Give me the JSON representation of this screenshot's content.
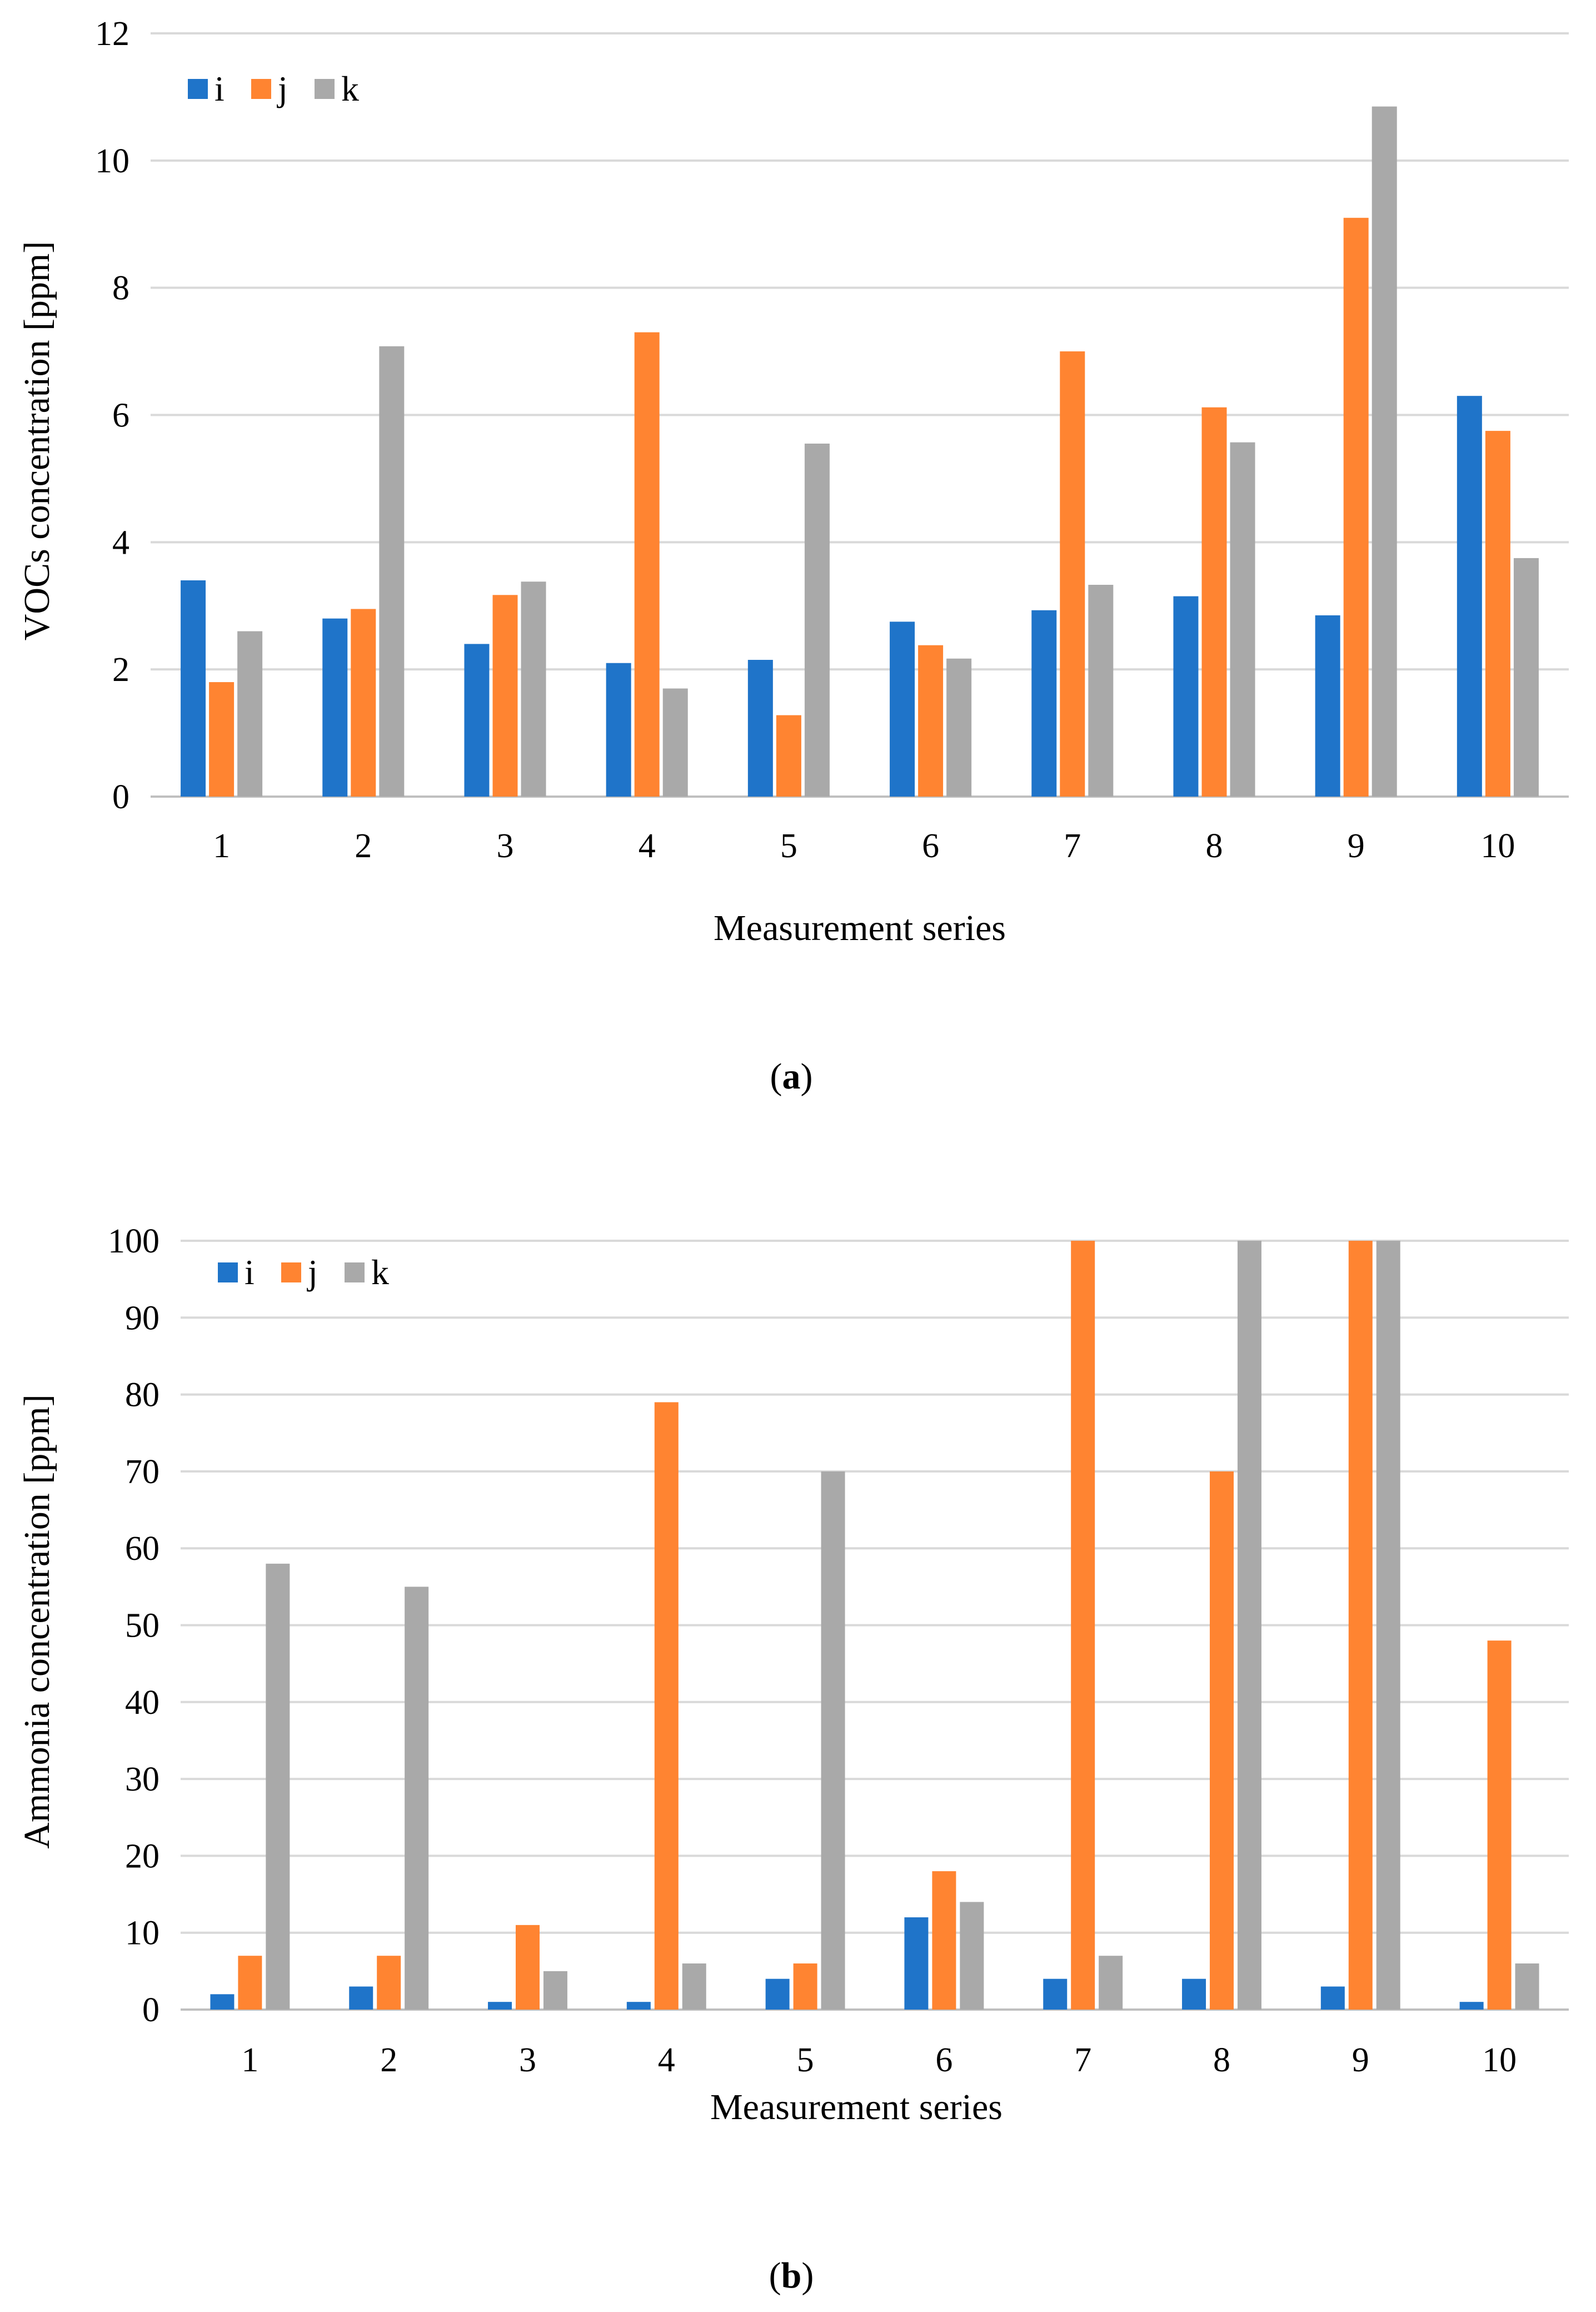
{
  "chart_data": [
    {
      "type": "bar",
      "title": "",
      "panel_label": "a",
      "xlabel": "Measurement series",
      "ylabel": "VOCs concentration [ppm]",
      "ylim": [
        0,
        12
      ],
      "yticks": [
        0,
        2,
        4,
        6,
        8,
        10,
        12
      ],
      "grid": true,
      "legend_position": "top-left",
      "categories": [
        "1",
        "2",
        "3",
        "4",
        "5",
        "6",
        "7",
        "8",
        "9",
        "10"
      ],
      "series": [
        {
          "name": "i",
          "color": "#1F74C9",
          "values": [
            3.4,
            2.8,
            2.4,
            2.1,
            2.15,
            2.75,
            2.93,
            3.15,
            2.85,
            6.3
          ]
        },
        {
          "name": "j",
          "color": "#FF8431",
          "values": [
            1.8,
            2.95,
            3.17,
            7.3,
            1.28,
            2.38,
            7.0,
            6.12,
            9.1,
            5.75
          ]
        },
        {
          "name": "k",
          "color": "#A9A9A9",
          "values": [
            2.6,
            7.08,
            3.38,
            1.7,
            5.55,
            2.17,
            3.33,
            5.57,
            10.85,
            3.75
          ]
        }
      ]
    },
    {
      "type": "bar",
      "title": "",
      "panel_label": "b",
      "xlabel": "Measurement series",
      "ylabel": "Ammonia concentration [ppm]",
      "ylim": [
        0,
        100
      ],
      "yticks": [
        0,
        10,
        20,
        30,
        40,
        50,
        60,
        70,
        80,
        90,
        100
      ],
      "grid": true,
      "legend_position": "top-left",
      "categories": [
        "1",
        "2",
        "3",
        "4",
        "5",
        "6",
        "7",
        "8",
        "9",
        "10"
      ],
      "series": [
        {
          "name": "i",
          "color": "#1F74C9",
          "values": [
            2,
            3,
            1,
            1,
            4,
            12,
            4,
            4,
            3,
            1
          ]
        },
        {
          "name": "j",
          "color": "#FF8431",
          "values": [
            7,
            7,
            11,
            79,
            6,
            18,
            100,
            70,
            100,
            48
          ]
        },
        {
          "name": "k",
          "color": "#A9A9A9",
          "values": [
            58,
            55,
            5,
            6,
            70,
            14,
            7,
            100,
            100,
            6
          ]
        }
      ]
    }
  ],
  "captions": [
    {
      "open": "(",
      "letter": "a",
      "close": ")"
    },
    {
      "open": "(",
      "letter": "b",
      "close": ")"
    }
  ]
}
